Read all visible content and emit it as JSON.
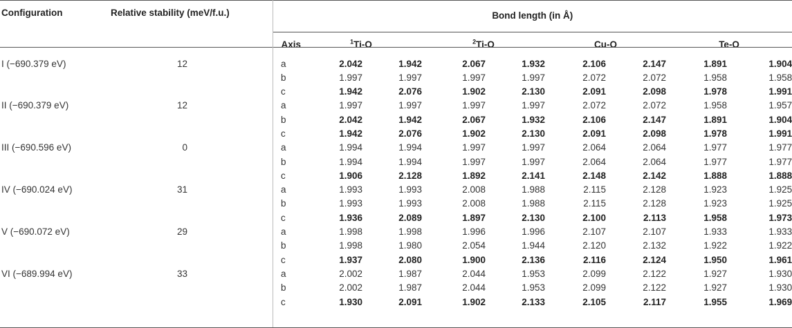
{
  "headers": {
    "configuration": "Configuration",
    "stability": "Relative stability (meV/f.u.)",
    "bond_length": "Bond length (in Å)",
    "axis": "Axis",
    "ti1_sup": "1",
    "ti1": "Ti-O",
    "ti2_sup": "2",
    "ti2": "Ti-O",
    "cuo": "Cu-O",
    "teo": "Te-O"
  },
  "rows": [
    {
      "config": "I (−690.379 eV)",
      "stability": "12",
      "axis": "a",
      "values": [
        "2.042",
        "1.942",
        "2.067",
        "1.932",
        "2.106",
        "2.147",
        "1.891",
        "1.904"
      ],
      "bold": true
    },
    {
      "config": "",
      "stability": "",
      "axis": "b",
      "values": [
        "1.997",
        "1.997",
        "1.997",
        "1.997",
        "2.072",
        "2.072",
        "1.958",
        "1.958"
      ],
      "bold": false
    },
    {
      "config": "",
      "stability": "",
      "axis": "c",
      "values": [
        "1.942",
        "2.076",
        "1.902",
        "2.130",
        "2.091",
        "2.098",
        "1.978",
        "1.991"
      ],
      "bold": true
    },
    {
      "config": "II (−690.379 eV)",
      "stability": "12",
      "axis": "a",
      "values": [
        "1.997",
        "1.997",
        "1.997",
        "1.997",
        "2.072",
        "2.072",
        "1.958",
        "1.957"
      ],
      "bold": false
    },
    {
      "config": "",
      "stability": "",
      "axis": "b",
      "values": [
        "2.042",
        "1.942",
        "2.067",
        "1.932",
        "2.106",
        "2.147",
        "1.891",
        "1.904"
      ],
      "bold": true
    },
    {
      "config": "",
      "stability": "",
      "axis": "c",
      "values": [
        "1.942",
        "2.076",
        "1.902",
        "2.130",
        "2.091",
        "2.098",
        "1.978",
        "1.991"
      ],
      "bold": true
    },
    {
      "config": "III (−690.596 eV)",
      "stability": "0",
      "axis": "a",
      "values": [
        "1.994",
        "1.994",
        "1.997",
        "1.997",
        "2.064",
        "2.064",
        "1.977",
        "1.977"
      ],
      "bold": false
    },
    {
      "config": "",
      "stability": "",
      "axis": "b",
      "values": [
        "1.994",
        "1.994",
        "1.997",
        "1.997",
        "2.064",
        "2.064",
        "1.977",
        "1.977"
      ],
      "bold": false
    },
    {
      "config": "",
      "stability": "",
      "axis": "c",
      "values": [
        "1.906",
        "2.128",
        "1.892",
        "2.141",
        "2.148",
        "2.142",
        "1.888",
        "1.888"
      ],
      "bold": true
    },
    {
      "config": "IV (−690.024 eV)",
      "stability": "31",
      "axis": "a",
      "values": [
        "1.993",
        "1.993",
        "2.008",
        "1.988",
        "2.115",
        "2.128",
        "1.923",
        "1.925"
      ],
      "bold": false
    },
    {
      "config": "",
      "stability": "",
      "axis": "b",
      "values": [
        "1.993",
        "1.993",
        "2.008",
        "1.988",
        "2.115",
        "2.128",
        "1.923",
        "1.925"
      ],
      "bold": false
    },
    {
      "config": "",
      "stability": "",
      "axis": "c",
      "values": [
        "1.936",
        "2.089",
        "1.897",
        "2.130",
        "2.100",
        "2.113",
        "1.958",
        "1.973"
      ],
      "bold": true
    },
    {
      "config": "V (−690.072 eV)",
      "stability": "29",
      "axis": "a",
      "values": [
        "1.998",
        "1.998",
        "1.996",
        "1.996",
        "2.107",
        "2.107",
        "1.933",
        "1.933"
      ],
      "bold": false
    },
    {
      "config": "",
      "stability": "",
      "axis": "b",
      "values": [
        "1.998",
        "1.980",
        "2.054",
        "1.944",
        "2.120",
        "2.132",
        "1.922",
        "1.922"
      ],
      "bold": false
    },
    {
      "config": "",
      "stability": "",
      "axis": "c",
      "values": [
        "1.937",
        "2.080",
        "1.900",
        "2.136",
        "2.116",
        "2.124",
        "1.950",
        "1.961"
      ],
      "bold": true
    },
    {
      "config": "VI (−689.994 eV)",
      "stability": "33",
      "axis": "a",
      "values": [
        "2.002",
        "1.987",
        "2.044",
        "1.953",
        "2.099",
        "2.122",
        "1.927",
        "1.930"
      ],
      "bold": false
    },
    {
      "config": "",
      "stability": "",
      "axis": "b",
      "values": [
        "2.002",
        "1.987",
        "2.044",
        "1.953",
        "2.099",
        "2.122",
        "1.927",
        "1.930"
      ],
      "bold": false
    },
    {
      "config": "",
      "stability": "",
      "axis": "c",
      "values": [
        "1.930",
        "2.091",
        "1.902",
        "2.133",
        "2.105",
        "2.117",
        "1.955",
        "1.969"
      ],
      "bold": true
    }
  ]
}
